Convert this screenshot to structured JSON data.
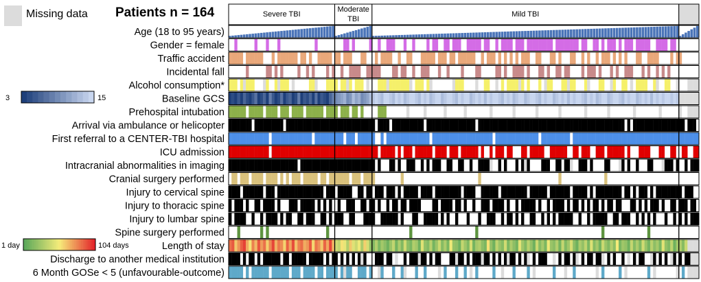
{
  "legend": {
    "missing_label": "Missing data",
    "missing_color": "#dcdcdc"
  },
  "chart_data": {
    "type": "heatmap",
    "title": "Patients n = 164",
    "n_patients": 164,
    "groups": [
      {
        "label_lines": [
          "Severe TBI"
        ],
        "count": 37
      },
      {
        "label_lines": [
          "Moderate",
          "TBI"
        ],
        "count": 13
      },
      {
        "label_lines": [
          "Mild TBI"
        ],
        "count": 107
      },
      {
        "label_lines": [
          ""
        ],
        "count": 7
      }
    ],
    "age_range": [
      18,
      95
    ],
    "gcs_scale": {
      "min_label": "3",
      "max_label": "15",
      "min": 3,
      "max": 15,
      "color_low": "#1e3f7a",
      "color_high": "#c8d6ef"
    },
    "los_scale": {
      "min_label": "1 day",
      "max_label": "104 days",
      "colors": [
        "#5aa85a",
        "#f6ec7a",
        "#e3232a"
      ]
    },
    "rows": [
      {
        "id": "age",
        "label": "Age (18 to 95 years)",
        "kind": "bars",
        "color": "#4a74b8"
      },
      {
        "id": "gender",
        "label": "Gender = female",
        "kind": "binary",
        "color": "#d46ce6"
      },
      {
        "id": "traffic",
        "label": "Traffic accident",
        "kind": "binary",
        "color": "#e9a87a"
      },
      {
        "id": "fall",
        "label": "Incidental fall",
        "kind": "binary",
        "color": "#c88a8a"
      },
      {
        "id": "alcohol",
        "label": "Alcohol consumption*",
        "kind": "binary",
        "color": "#f5f06a"
      },
      {
        "id": "gcs",
        "label": "Baseline GCS",
        "kind": "gcs"
      },
      {
        "id": "intubation",
        "label": "Prehospital intubation",
        "kind": "binary",
        "color": "#8db14a"
      },
      {
        "id": "ambulance",
        "label": "Arrival via ambulance or helicopter",
        "kind": "binary",
        "color": "#000000"
      },
      {
        "id": "referral",
        "label": "First referral to a CENTER-TBI hospital",
        "kind": "binary",
        "color": "#4d8fe8"
      },
      {
        "id": "icu",
        "label": "ICU admission",
        "kind": "binary",
        "color": "#e00000"
      },
      {
        "id": "imaging",
        "label": "Intracranial abnormalities in imaging",
        "kind": "binary",
        "color": "#000000"
      },
      {
        "id": "cranial",
        "label": "Cranial surgery performed",
        "kind": "binary",
        "color": "#d9c17c"
      },
      {
        "id": "cervical",
        "label": "Injury to cervical spine",
        "kind": "binary",
        "color": "#000000"
      },
      {
        "id": "thoracic",
        "label": "Injury to thoracic spine",
        "kind": "binary",
        "color": "#000000"
      },
      {
        "id": "lumbar",
        "label": "Injury to lumbar spine",
        "kind": "binary",
        "color": "#000000"
      },
      {
        "id": "spine_surgery",
        "label": "Spine surgery performed",
        "kind": "binary",
        "color": "#5e9440"
      },
      {
        "id": "los",
        "label": "Length of stay",
        "kind": "los"
      },
      {
        "id": "discharge",
        "label": "Discharge to another medical institution",
        "kind": "binary",
        "color": "#000000"
      },
      {
        "id": "gose",
        "label": "6 Month GOSe < 5 (unfavourable-outcome)",
        "kind": "binary",
        "color": "#5ea9c9"
      }
    ],
    "cell_values": {
      "gender": "0010000001000100010000000000001000000000110100000100100111000100100001011001101110011111011001011110111011111111101111111101100110101110101110111110011110110000000",
      "traffic": "1111101111110001011111110110100111110110111000110001011110010011000111110111011011111100101110101010101110011000110100011001010010111010101000110011110000101100000",
      "fall": "0000001000000110101000001001010000101001001111001111100001101100100111000100100001000011000001101001111010001101001101100001011101000101001110001010010101000000000",
      "alcohol": "1110111110001100111110100000110000111101101011101000111011111110011101000000001111000000011000010111101010001011100011111000100001100110011000111100100011001000000",
      "gcs": "3,4,3,5,3,6,4,3,5,7,3,4,6,3,8,5,3,4,7,3,5,6,3,4,8,3,5,4,6,3,7,3,5,4,3,6,8,9,10,11,12,9,10,13,11,12,9,10,11,13,14,15,14,13,15,15,14,13,15,14,15,13,14,15,15,14,13,15,14,15,13,14,15,15,13,14,15,15,14,13,15,14,15,15,13,14,15,14,15,13,15,14,15,15,14,13,15,14,15,13,14,15,15,13,14,15,15,14,13,15,14,15,15,13,14,15,14,15,13,15,14,15,15,14,13,15,14,15,13,14,15,15,13,14,15,15,14,13,15,14,15,15,13,14,15,14,15,13,15,14,15,14,15,15,14,15,14,15,13,15,15,14,13,15",
      "intubation": "11111101111101111011101111011111101111011101101000001110000000000000000000000000000000000000000000000000000000000000000000000000000000000000000000000000000000000000000",
      "ambulance": "11111111011111111110111111111111111111111111111111101111011111111111011111111111111111011111111111111111111111111111111111111111111111111101011111111111111111101110",
      "referral": "11111111111111011111111111111011111111110111011111100101111111111111110111111111111111111111011111111111111101111111111011111111111111111111111111111111111111111111",
      "icu": "11111111111111011111111111111111111111111111111111110111110101110111111011110111011111101001011101100011011111001111110011011100111011111101000111100011001100110011111",
      "imaging": "11111111111111111111111101111111111111111111111111101000110100111001010111001100110010011111001010001011100001110011011000111010000110001101001000110001111010010111110",
      "cranial": "01101110111101111010101110111110110111111101110111100000000010000000000000000000000000010000000000000000000000000001000000000000000100000000000000000000000000000000",
      "cervical": "11110111111101110111111111111111101110111110011011011101110101111101111011111111101111001111110111111111011111101111111011111010111111111011010111010111111111011100",
      "thoracic": "10111010011011110100011101111101010100100111001101101001011011011110000110111101101001001110111101001011111010010111101011010101101011011000110101011101001101110110",
      "lumbar": "10111100100101111010110011011100110101110011000111100111111010001100111110101001000100010011100101101010011001010101111100100101111100110111001010101000100101010111",
      "spine_surgery": "00010000000101000000000000000000001000000000000000000000000000010000000000000000000000100000000000000000000000000000000000000000001000000000000000100000000000000000",
      "los": "84,90,62,75,88,96,70,55,80,66,91,73,84,60,78,95,68,82,77,59,88,71,93,64,80,85,69,74,90,58,83,76,62,87,70,95,66,40,35,55,48,30,62,45,38,50,28,60,42,20,15,30,12,25,18,8,22,35,10,28,14,40,18,12,30,25,8,45,20,15,32,10,22,38,16,28,12,50,20,18,8,36,24,14,42,10,26,30,18,12,55,20,8,34,22,16,40,12,28,18,10,46,24,14,32,20,8,38,16,26,12,50,22,18,30,10,36,14,24,42,18,8,28,20,34,12,44,16,26,10,38,22,14,30,18,52,12,24,20,8,36,16,28,14,40,22,10,32,18,26,12,46,20,14,34,8,24,30,16,38,22,12,28,18",
      "discharge": "11110101101011111101101111101111101011010101011100011101101001011101101011000110110101110110101010110101101011100101011011010110111010100101010110011010101101011010",
      "gose": "11111010111111011111101110111101101111011110011101000100010010000100100000010001001000100000100000010000100000000100000010000000001000001000000000100000000000101110"
    },
    "missing": {
      "alcohol": [
        5,
        12,
        17,
        22,
        30,
        41,
        48,
        55,
        63,
        70,
        78,
        86,
        93,
        101,
        110,
        118,
        125,
        133,
        140,
        149,
        156,
        160,
        161,
        162,
        163
      ],
      "intubation": [
        62,
        68,
        75,
        82,
        91,
        99,
        107,
        115,
        124,
        132,
        141,
        150,
        157,
        160,
        161,
        162,
        163
      ],
      "gcs": [
        157,
        158,
        159,
        160,
        161,
        162,
        163
      ],
      "discharge": [
        46,
        58,
        66,
        79,
        88,
        97,
        104,
        113,
        121,
        130,
        139,
        147,
        154,
        161,
        162,
        163
      ],
      "gose": [
        40,
        52,
        61,
        73,
        84,
        95,
        106,
        117,
        128,
        138,
        148,
        156,
        160,
        161,
        162,
        163
      ],
      "imaging": [
        91,
        103,
        119,
        136,
        151
      ],
      "los": [
        160,
        161,
        162,
        163
      ]
    }
  }
}
